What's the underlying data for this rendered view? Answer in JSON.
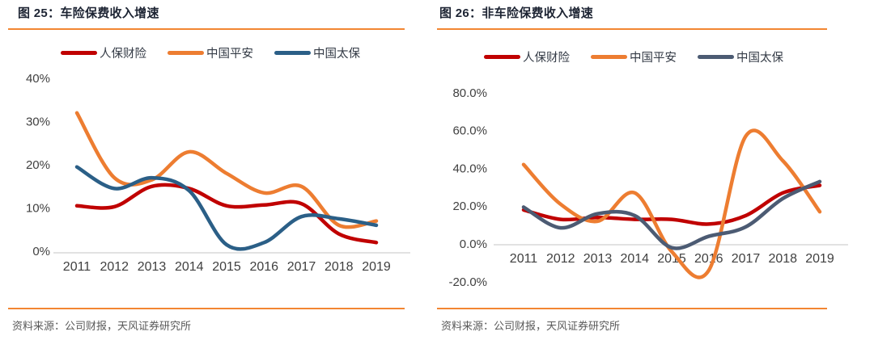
{
  "page": {
    "background": "#ffffff"
  },
  "style_colors": {
    "rule_orange": "#F28632",
    "axis_line": "#D9D9D9",
    "tick_text": "#404040",
    "caption_text": "#1D2433",
    "source_text": "#595959"
  },
  "chart_data": [
    {
      "type": "line",
      "caption": "图 25：车险保费收入增速",
      "title": "车险保费收入增速",
      "source": "资料来源：公司财报，天风证券研究所",
      "categories": [
        "2011",
        "2012",
        "2013",
        "2014",
        "2015",
        "2016",
        "2017",
        "2018",
        "2019"
      ],
      "xlabel": "",
      "ylabel": "",
      "ylim": [
        0,
        40
      ],
      "grid": "zero-axis-only",
      "legend_position": "top-center",
      "smooth": true,
      "yticks": [
        {
          "value": 0,
          "label": "0%"
        },
        {
          "value": 10,
          "label": "10%"
        },
        {
          "value": 20,
          "label": "20%"
        },
        {
          "value": 30,
          "label": "30%"
        },
        {
          "value": 40,
          "label": "40%"
        }
      ],
      "series": [
        {
          "name": "人保财险",
          "color": "#C00000",
          "values": [
            10.5,
            10.3,
            15.0,
            14.5,
            10.5,
            10.7,
            11.0,
            4.0,
            2.0
          ]
        },
        {
          "name": "中国平安",
          "color": "#ED7D31",
          "values": [
            32.0,
            17.0,
            16.5,
            23.0,
            18.0,
            13.5,
            15.0,
            6.0,
            7.0
          ]
        },
        {
          "name": "中国太保",
          "color": "#2B5F87",
          "values": [
            19.5,
            14.5,
            17.0,
            14.0,
            1.5,
            2.0,
            8.0,
            7.5,
            6.0
          ]
        }
      ]
    },
    {
      "type": "line",
      "caption": "图 26：非车险保费收入增速",
      "title": "非车险保费收入增速",
      "source": "资料来源：公司财报，天风证券研究所",
      "categories": [
        "2011",
        "2012",
        "2013",
        "2014",
        "2015",
        "2016",
        "2017",
        "2018",
        "2019"
      ],
      "xlabel": "",
      "ylabel": "",
      "ylim": [
        -20,
        80
      ],
      "grid": "zero-axis-only",
      "legend_position": "top-center",
      "smooth": true,
      "yticks": [
        {
          "value": -20,
          "label": "-20.0%"
        },
        {
          "value": 0,
          "label": "0.0%"
        },
        {
          "value": 20,
          "label": "20.0%"
        },
        {
          "value": 40,
          "label": "40.0%"
        },
        {
          "value": 60,
          "label": "60.0%"
        },
        {
          "value": 80,
          "label": "80.0%"
        }
      ],
      "series": [
        {
          "name": "人保财险",
          "color": "#C00000",
          "values": [
            18.0,
            13.0,
            14.0,
            13.0,
            13.0,
            10.5,
            15.0,
            27.0,
            31.0
          ]
        },
        {
          "name": "中国平安",
          "color": "#ED7D31",
          "values": [
            42.0,
            21.0,
            12.0,
            27.0,
            -4.0,
            -14.0,
            57.0,
            44.0,
            17.0
          ]
        },
        {
          "name": "中国太保",
          "color": "#4C5B73",
          "values": [
            19.5,
            8.5,
            16.0,
            15.0,
            -2.0,
            4.0,
            9.0,
            24.0,
            33.0
          ]
        }
      ]
    }
  ]
}
